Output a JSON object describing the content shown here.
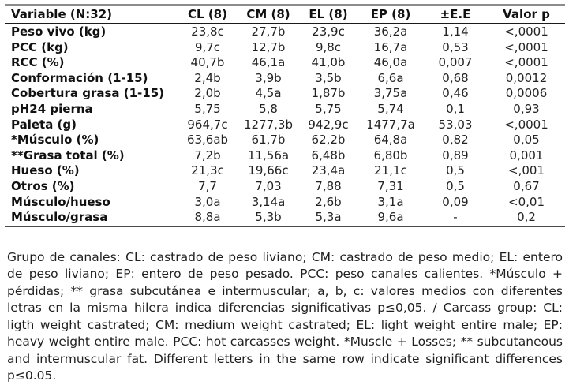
{
  "table": {
    "header": [
      "Variable (N:32)",
      "CL (8)",
      "CM (8)",
      "EL (8)",
      "EP (8)",
      "±E.E",
      "Valor p"
    ],
    "rows": [
      [
        "Peso vivo (kg)",
        "23,8c",
        "27,7b",
        "23,9c",
        "36,2a",
        "1,14",
        "<,0001"
      ],
      [
        "PCC (kg)",
        "9,7c",
        "12,7b",
        "9,8c",
        "16,7a",
        "0,53",
        "<,0001"
      ],
      [
        "RCC (%)",
        "40,7b",
        "46,1a",
        "41,0b",
        "46,0a",
        "0,007",
        "<,0001"
      ],
      [
        "Conformación (1-15)",
        "2,4b",
        "3,9b",
        "3,5b",
        "6,6a",
        "0,68",
        "0,0012"
      ],
      [
        "Cobertura grasa (1-15)",
        "2,0b",
        "4,5a",
        "1,87b",
        "3,75a",
        "0,46",
        "0,0006"
      ],
      [
        "pH24 pierna",
        "5,75",
        "5,8",
        "5,75",
        "5,74",
        "0,1",
        "0,93"
      ],
      [
        "Paleta (g)",
        "964,7c",
        "1277,3b",
        "942,9c",
        "1477,7a",
        "53,03",
        "<,0001"
      ],
      [
        "*Músculo (%)",
        "63,6ab",
        "61,7b",
        "62,2b",
        "64,8a",
        "0,82",
        "0,05"
      ],
      [
        "**Grasa total (%)",
        "7,2b",
        "11,56a",
        "6,48b",
        "6,80b",
        "0,89",
        "0,001"
      ],
      [
        "Hueso (%)",
        "21,3c",
        "19,66c",
        "23,4a",
        "21,1c",
        "0,5",
        "<,001"
      ],
      [
        "Otros (%)",
        "7,7",
        "7,03",
        "7,88",
        "7,31",
        "0,5",
        "0,67"
      ],
      [
        "Músculo/hueso",
        "3,0a",
        "3,14a",
        "2,6b",
        "3,1a",
        "0,09",
        "<0,01"
      ],
      [
        "Músculo/grasa",
        "8,8a",
        "5,3b",
        "5,3a",
        "9,6a",
        "-",
        "0,2"
      ]
    ]
  },
  "footnote": {
    "text": "Grupo de canales: CL: castrado de peso liviano; CM: castrado de peso medio; EL: entero de peso liviano; EP: entero de peso pesado. PCC: peso canales calientes. *Músculo + pérdidas; ** grasa subcutánea e intermuscular; a, b, c: valores medios con diferentes letras en la misma hilera indica diferencias significativas  p≤0,05. / Carcass group: CL: ligth weight castrated; CM: medium weight  castrated; EL: light weight entire male; EP: heavy weight entire male. PCC: hot carcasses weight. *Muscle + Losses; ** subcutaneous and intermuscular fat. Different letters in the same row indicate significant differences p≤0.05."
  },
  "colors": {
    "text": "#1a1a1a",
    "rule_top": "#8c8c8c",
    "rule_header": "#1a1a1a",
    "rule_bottom": "#4d4d4d"
  }
}
